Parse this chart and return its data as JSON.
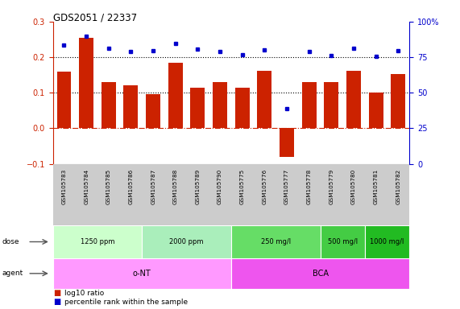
{
  "title": "GDS2051 / 22337",
  "samples": [
    "GSM105783",
    "GSM105784",
    "GSM105785",
    "GSM105786",
    "GSM105787",
    "GSM105788",
    "GSM105789",
    "GSM105790",
    "GSM105775",
    "GSM105776",
    "GSM105777",
    "GSM105778",
    "GSM105779",
    "GSM105780",
    "GSM105781",
    "GSM105782"
  ],
  "log10_ratio": [
    0.16,
    0.255,
    0.13,
    0.12,
    0.095,
    0.185,
    0.115,
    0.13,
    0.115,
    0.162,
    -0.08,
    0.13,
    0.13,
    0.162,
    0.1,
    0.153
  ],
  "percentile_rank": [
    0.235,
    0.26,
    0.225,
    0.215,
    0.218,
    0.238,
    0.222,
    0.215,
    0.208,
    0.22,
    0.055,
    0.215,
    0.205,
    0.225,
    0.202,
    0.218
  ],
  "dose_groups": [
    {
      "label": "1250 ppm",
      "start": 0,
      "end": 4,
      "color": "#ccffcc"
    },
    {
      "label": "2000 ppm",
      "start": 4,
      "end": 8,
      "color": "#aaeebb"
    },
    {
      "label": "250 mg/l",
      "start": 8,
      "end": 12,
      "color": "#66dd66"
    },
    {
      "label": "500 mg/l",
      "start": 12,
      "end": 14,
      "color": "#44cc44"
    },
    {
      "label": "1000 mg/l",
      "start": 14,
      "end": 16,
      "color": "#22bb22"
    }
  ],
  "agent_groups": [
    {
      "label": "o-NT",
      "start": 0,
      "end": 8,
      "color": "#ff99ff"
    },
    {
      "label": "BCA",
      "start": 8,
      "end": 16,
      "color": "#ee55ee"
    }
  ],
  "ylim_left": [
    -0.1,
    0.3
  ],
  "bar_color": "#cc2200",
  "dot_color": "#0000cc",
  "bg_color": "#ffffff",
  "label_bg": "#cccccc",
  "hline_dashdot_color": "#cc2200",
  "hline_dotted_color": "#000000"
}
